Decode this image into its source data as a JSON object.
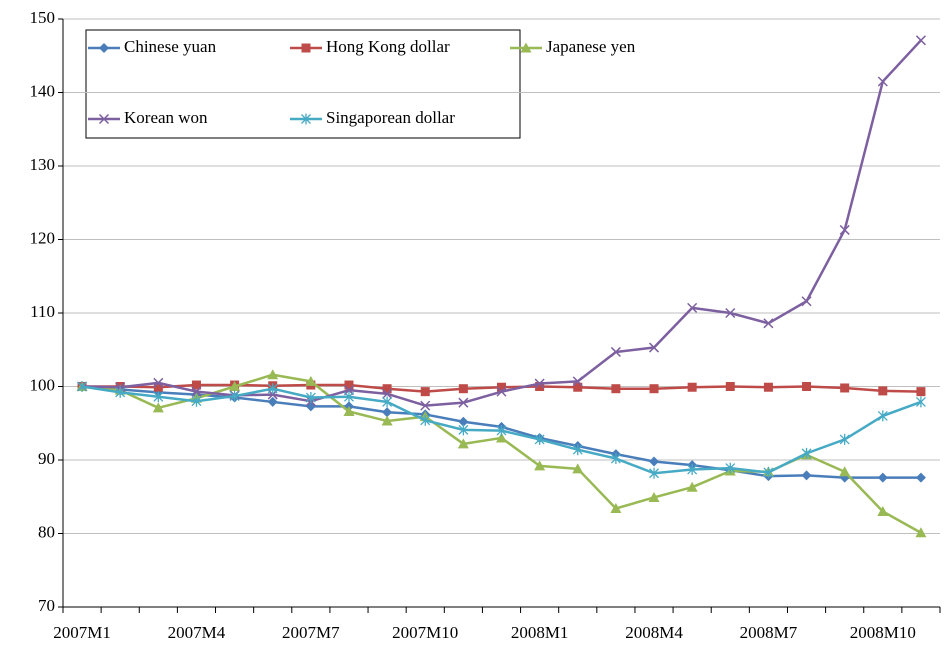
{
  "chart_data": {
    "type": "line",
    "categories": [
      "2007M1",
      null,
      null,
      "2007M4",
      null,
      null,
      "2007M7",
      null,
      null,
      "2007M10",
      null,
      null,
      "2008M1",
      null,
      null,
      "2008M4",
      null,
      null,
      "2008M7",
      null,
      null,
      "2008M10",
      null
    ],
    "series": [
      {
        "name": "Chinese yuan",
        "color": "#4a7ebb",
        "marker": "diamond",
        "values": [
          100,
          99.6,
          99.2,
          98.9,
          98.5,
          97.9,
          97.3,
          97.3,
          96.5,
          96.2,
          95.2,
          94.5,
          93,
          91.9,
          90.8,
          89.8,
          89.3,
          88.6,
          87.8,
          87.9,
          87.6,
          87.6,
          87.6
        ]
      },
      {
        "name": "Hong Kong dollar",
        "color": "#be4b48",
        "marker": "square",
        "values": [
          100,
          100,
          99.9,
          100.2,
          100.2,
          100.1,
          100.2,
          100.2,
          99.7,
          99.3,
          99.7,
          99.9,
          100,
          99.9,
          99.7,
          99.7,
          99.9,
          100,
          99.9,
          100,
          99.8,
          99.4,
          99.3
        ]
      },
      {
        "name": "Japanese yen",
        "color": "#98b954",
        "marker": "triangle",
        "values": [
          100,
          99.5,
          97.1,
          98.4,
          100,
          101.6,
          100.7,
          96.6,
          95.3,
          95.9,
          92.2,
          93.0,
          89.2,
          88.8,
          83.4,
          84.9,
          86.3,
          88.5,
          88.4,
          90.7,
          88.4,
          83.0,
          80.1
        ]
      },
      {
        "name": "Korean won",
        "color": "#7d60a0",
        "marker": "x",
        "values": [
          100,
          99.9,
          100.5,
          99.3,
          98.8,
          98.9,
          98.0,
          99.5,
          99.0,
          97.4,
          97.8,
          99.3,
          100.4,
          100.7,
          104.7,
          105.3,
          110.7,
          110.0,
          108.6,
          111.6,
          121.3,
          141.5,
          147.1
        ]
      },
      {
        "name": "Singaporean dollar",
        "color": "#46aac5",
        "marker": "star",
        "values": [
          100,
          99.2,
          98.6,
          98.0,
          98.7,
          99.7,
          98.5,
          98.6,
          97.9,
          95.4,
          94.1,
          94.0,
          92.8,
          91.4,
          90.2,
          88.2,
          88.7,
          88.9,
          88.3,
          90.9,
          92.8,
          96.0,
          97.9
        ]
      }
    ],
    "ylim": [
      70,
      150
    ],
    "yticks": [
      70,
      80,
      90,
      100,
      110,
      120,
      130,
      140,
      150
    ],
    "grid": true
  }
}
